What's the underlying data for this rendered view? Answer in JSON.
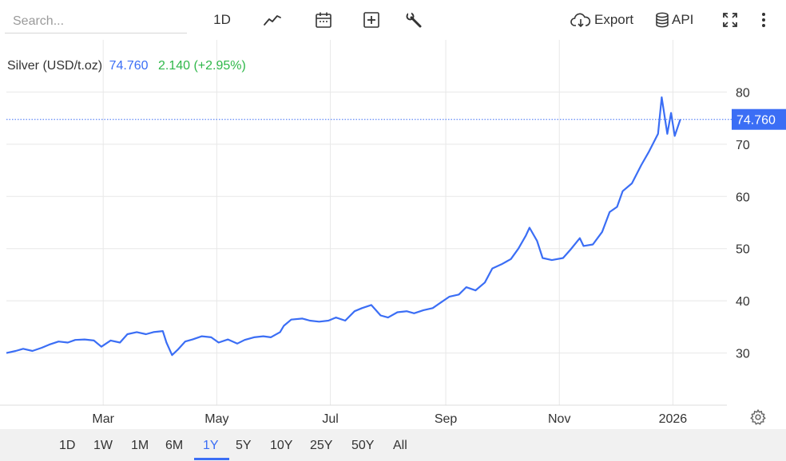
{
  "toolbar": {
    "search_placeholder": "Search...",
    "interval_label": "1D",
    "export_label": "Export",
    "api_label": "API"
  },
  "info": {
    "symbol": "Silver (USD/t.oz)",
    "last": "74.760",
    "change": "2.140 (+2.95%)"
  },
  "price_tag": "74.760",
  "ranges": [
    "1D",
    "1W",
    "1M",
    "6M",
    "1Y",
    "5Y",
    "10Y",
    "25Y",
    "50Y",
    "All"
  ],
  "active_range": "1Y",
  "colors": {
    "line": "#3b6ef5",
    "accent": "#3b6ef5",
    "change_up": "#2fb84a",
    "grid": "#e8e8e8",
    "range_bar": "#f1f1f1"
  },
  "icons": [
    "line-chart-icon",
    "calendar-icon",
    "compare-plus-icon",
    "wrench-icon",
    "cloud-download-icon",
    "database-icon",
    "fullscreen-icon",
    "more-vertical-icon",
    "gear-icon"
  ],
  "chart_data": {
    "type": "line",
    "title": "",
    "xlabel": "",
    "ylabel": "",
    "ylim": [
      20,
      90
    ],
    "yticks": [
      30,
      40,
      50,
      60,
      70,
      80
    ],
    "xlim": [
      "2025-01-08",
      "2026-01-30"
    ],
    "xticks": [
      {
        "label": "Mar",
        "date": "2025-03-01"
      },
      {
        "label": "May",
        "date": "2025-05-01"
      },
      {
        "label": "Jul",
        "date": "2025-07-01"
      },
      {
        "label": "Sep",
        "date": "2025-09-01"
      },
      {
        "label": "Nov",
        "date": "2025-11-01"
      },
      {
        "label": "2026",
        "date": "2026-01-01"
      }
    ],
    "current_value": 74.76,
    "grid": true,
    "series": [
      {
        "x": [
          "2025-01-08",
          "2025-01-13",
          "2025-01-17",
          "2025-01-22",
          "2025-01-27",
          "2025-01-31",
          "2025-02-05",
          "2025-02-10",
          "2025-02-14",
          "2025-02-19",
          "2025-02-24",
          "2025-02-28",
          "2025-03-05",
          "2025-03-10",
          "2025-03-14",
          "2025-03-19",
          "2025-03-24",
          "2025-03-28",
          "2025-04-02",
          "2025-04-04",
          "2025-04-07",
          "2025-04-10",
          "2025-04-14",
          "2025-04-18",
          "2025-04-23",
          "2025-04-28",
          "2025-05-02",
          "2025-05-07",
          "2025-05-12",
          "2025-05-16",
          "2025-05-21",
          "2025-05-26",
          "2025-05-30",
          "2025-06-04",
          "2025-06-06",
          "2025-06-10",
          "2025-06-16",
          "2025-06-20",
          "2025-06-25",
          "2025-06-30",
          "2025-07-04",
          "2025-07-09",
          "2025-07-14",
          "2025-07-18",
          "2025-07-23",
          "2025-07-28",
          "2025-08-01",
          "2025-08-06",
          "2025-08-11",
          "2025-08-15",
          "2025-08-20",
          "2025-08-25",
          "2025-08-29",
          "2025-09-03",
          "2025-09-08",
          "2025-09-12",
          "2025-09-17",
          "2025-09-22",
          "2025-09-26",
          "2025-10-01",
          "2025-10-06",
          "2025-10-10",
          "2025-10-14",
          "2025-10-16",
          "2025-10-20",
          "2025-10-23",
          "2025-10-28",
          "2025-11-03",
          "2025-11-07",
          "2025-11-12",
          "2025-11-14",
          "2025-11-19",
          "2025-11-24",
          "2025-11-28",
          "2025-12-02",
          "2025-12-05",
          "2025-12-10",
          "2025-12-15",
          "2025-12-19",
          "2025-12-24",
          "2025-12-26",
          "2025-12-29",
          "2025-12-31",
          "2026-01-02",
          "2026-01-05"
        ],
        "values": [
          30.0,
          30.4,
          30.8,
          30.4,
          31.0,
          31.6,
          32.2,
          32.0,
          32.5,
          32.6,
          32.4,
          31.2,
          32.4,
          32.0,
          33.6,
          34.0,
          33.6,
          34.0,
          34.2,
          32.0,
          29.6,
          30.6,
          32.2,
          32.6,
          33.2,
          33.0,
          32.0,
          32.6,
          31.8,
          32.5,
          33.0,
          33.2,
          33.0,
          34.0,
          35.2,
          36.4,
          36.6,
          36.2,
          36.0,
          36.2,
          36.8,
          36.2,
          38.0,
          38.6,
          39.2,
          37.2,
          36.8,
          37.8,
          38.0,
          37.6,
          38.2,
          38.6,
          39.6,
          40.8,
          41.2,
          42.6,
          42.0,
          43.5,
          46.2,
          47.0,
          48.0,
          50.0,
          52.5,
          54.0,
          51.5,
          48.2,
          47.8,
          48.2,
          49.8,
          52.0,
          50.5,
          50.8,
          53.2,
          57.0,
          58.0,
          61.0,
          62.5,
          66.0,
          68.5,
          72.0,
          79.0,
          72.0,
          76.0,
          71.6,
          74.76
        ]
      }
    ]
  }
}
